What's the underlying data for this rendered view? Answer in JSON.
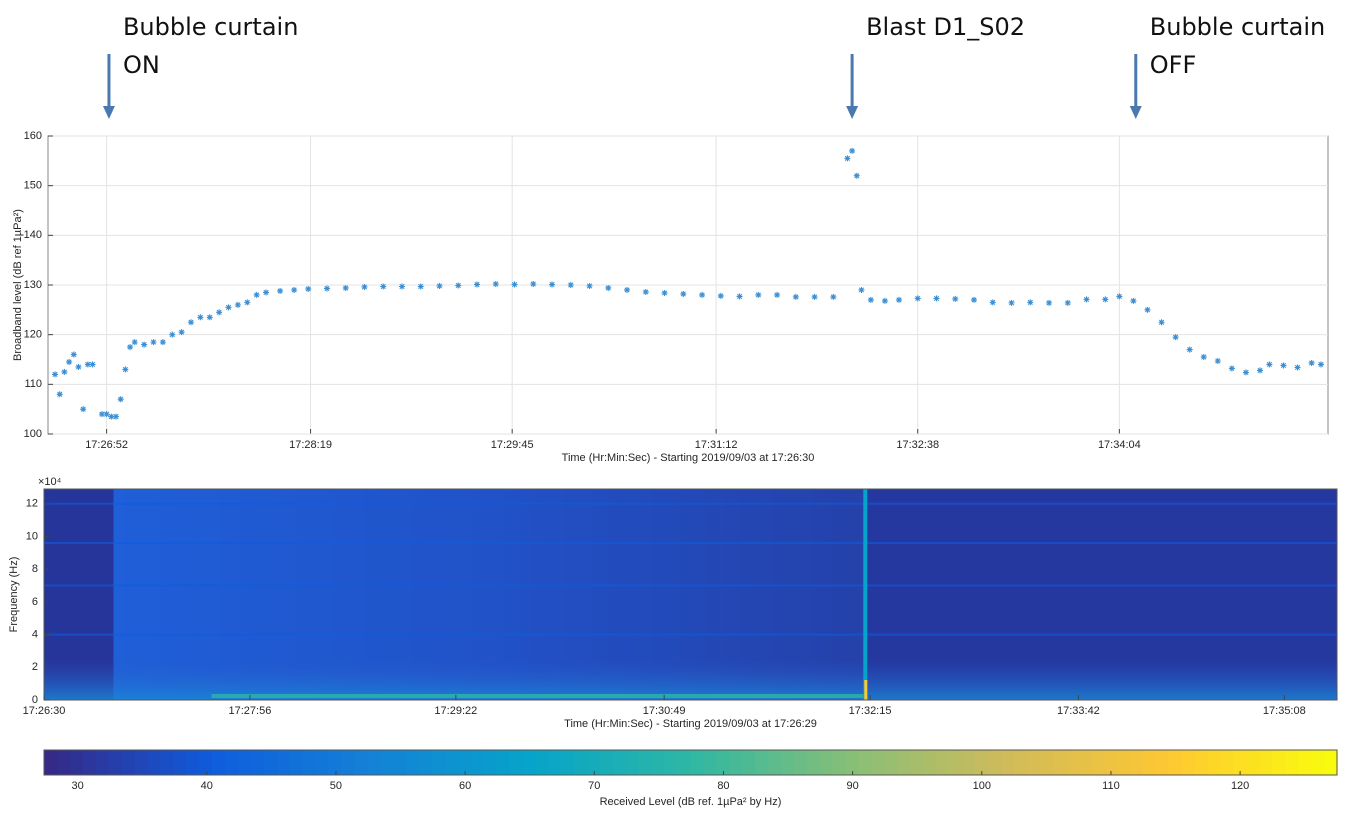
{
  "chart_data": [
    {
      "type": "scatter",
      "annotations": [
        {
          "lines": [
            "Bubble curtain",
            "ON"
          ],
          "at": "17:26:53"
        },
        {
          "lines": [
            "Blast D1_S02"
          ],
          "at": "17:32:10"
        },
        {
          "lines": [
            "Bubble curtain",
            "OFF"
          ],
          "at": "17:34:11"
        }
      ],
      "ylabel": "Broadband level (dB ref 1µPa²)",
      "xlabel": "Time (Hr:Min:Sec) - Starting 2019/09/03 at 17:26:30",
      "xlim": [
        "17:26:27",
        "17:35:33"
      ],
      "xticks": [
        "17:26:52",
        "17:28:19",
        "17:29:45",
        "17:31:12",
        "17:32:38",
        "17:34:04"
      ],
      "ylim": [
        100,
        160
      ],
      "yticks": [
        100,
        110,
        120,
        130,
        140,
        150,
        160
      ],
      "grid": true,
      "color": "#3b8fd4",
      "x": [
        "17:26:30",
        "17:26:32",
        "17:26:34",
        "17:26:36",
        "17:26:38",
        "17:26:40",
        "17:26:42",
        "17:26:44",
        "17:26:46",
        "17:26:50",
        "17:26:52",
        "17:26:54",
        "17:26:56",
        "17:26:58",
        "17:27:00",
        "17:27:02",
        "17:27:04",
        "17:27:08",
        "17:27:12",
        "17:27:16",
        "17:27:20",
        "17:27:24",
        "17:27:28",
        "17:27:32",
        "17:27:36",
        "17:27:40",
        "17:27:44",
        "17:27:48",
        "17:27:52",
        "17:27:56",
        "17:28:00",
        "17:28:06",
        "17:28:12",
        "17:28:18",
        "17:28:26",
        "17:28:34",
        "17:28:42",
        "17:28:50",
        "17:28:58",
        "17:29:06",
        "17:29:14",
        "17:29:22",
        "17:29:30",
        "17:29:38",
        "17:29:46",
        "17:29:54",
        "17:30:02",
        "17:30:10",
        "17:30:18",
        "17:30:26",
        "17:30:34",
        "17:30:42",
        "17:30:50",
        "17:30:58",
        "17:31:06",
        "17:31:14",
        "17:31:22",
        "17:31:30",
        "17:31:38",
        "17:31:46",
        "17:31:54",
        "17:32:02",
        "17:32:08",
        "17:32:10",
        "17:32:12",
        "17:32:14",
        "17:32:18",
        "17:32:24",
        "17:32:30",
        "17:32:38",
        "17:32:46",
        "17:32:54",
        "17:33:02",
        "17:33:10",
        "17:33:18",
        "17:33:26",
        "17:33:34",
        "17:33:42",
        "17:33:50",
        "17:33:58",
        "17:34:04",
        "17:34:10",
        "17:34:16",
        "17:34:22",
        "17:34:28",
        "17:34:34",
        "17:34:40",
        "17:34:46",
        "17:34:52",
        "17:34:58",
        "17:35:04",
        "17:35:08",
        "17:35:14",
        "17:35:20",
        "17:35:26",
        "17:35:30"
      ],
      "values": [
        112,
        108,
        112.5,
        114.5,
        116,
        113.5,
        105,
        114,
        114,
        104,
        104,
        103.5,
        103.5,
        107,
        113,
        117.5,
        118.5,
        118,
        118.5,
        118.5,
        120,
        120.5,
        122.5,
        123.5,
        123.5,
        124.5,
        125.5,
        126,
        126.5,
        128,
        128.5,
        128.8,
        129,
        129.2,
        129.3,
        129.4,
        129.6,
        129.7,
        129.7,
        129.7,
        129.8,
        129.9,
        130.1,
        130.2,
        130.1,
        130.2,
        130.1,
        130,
        129.8,
        129.4,
        129,
        128.6,
        128.4,
        128.2,
        128,
        127.8,
        127.7,
        128,
        128,
        127.6,
        127.6,
        127.6,
        155.5,
        157,
        152,
        129,
        127,
        126.8,
        127,
        127.3,
        127.3,
        127.2,
        127,
        126.5,
        126.4,
        126.5,
        126.4,
        126.4,
        127.1,
        127.1,
        127.7,
        126.8,
        125,
        122.5,
        119.5,
        117,
        115.5,
        114.7,
        113.2,
        112.4,
        112.8,
        114,
        113.8,
        113.4,
        114.3,
        114
      ]
    },
    {
      "type": "spectrogram",
      "ylabel": "Frequency (Hz)",
      "xlabel": "Time (Hr:Min:Sec) - Starting 2019/09/03 at 17:26:29",
      "xlim": [
        "17:26:30",
        "17:35:30"
      ],
      "xticks": [
        "17:26:30",
        "17:27:56",
        "17:29:22",
        "17:30:49",
        "17:32:15",
        "17:33:42",
        "17:35:08"
      ],
      "ylim": [
        0,
        12.9
      ],
      "yticks": [
        0,
        2,
        4,
        6,
        8,
        10,
        12
      ],
      "y_multiplier": "×10⁴",
      "colormap": [
        "#352a87",
        "#0f5cdd",
        "#1481d6",
        "#06a4ca",
        "#2eb7a4",
        "#87bf77",
        "#d1bb59",
        "#fec832",
        "#f9fb0e"
      ],
      "colorbar": {
        "label": "Received Level (dB ref. 1µPa² by Hz)",
        "lim": [
          27.4,
          127.5
        ],
        "ticks": [
          30,
          40,
          50,
          60,
          70,
          80,
          90,
          100,
          110,
          120
        ]
      }
    }
  ]
}
